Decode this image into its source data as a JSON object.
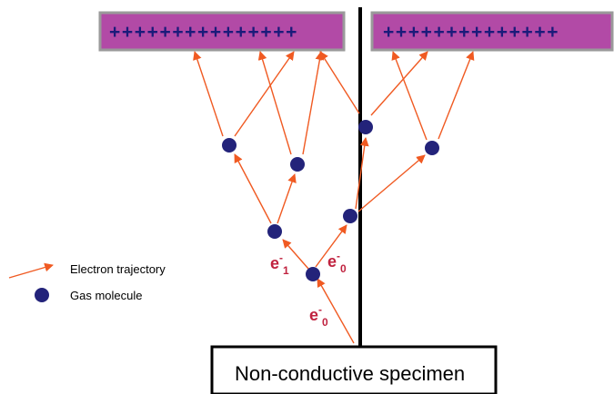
{
  "plates": {
    "left_charges": "+++++++++++++++",
    "right_charges": "++++++++++++++"
  },
  "labels": {
    "e_label_1": {
      "base": "e",
      "sup": "-",
      "sub": "1"
    },
    "e_label_2": {
      "base": "e",
      "sup": "-",
      "sub": "0"
    },
    "e_label_3": {
      "base": "e",
      "sup": "-",
      "sub": "0"
    }
  },
  "legend": {
    "trajectory_label": "Electron trajectory",
    "molecule_label": "Gas molecule"
  },
  "specimen": {
    "label": "Non-conductive specimen"
  },
  "colors": {
    "plate_fill": "#b24aa6",
    "plate_border": "#9a9a9a",
    "arrow": "#f05a22",
    "molecule": "#23237a",
    "e_label": "#c0223f",
    "charge": "#1b1b7a"
  }
}
